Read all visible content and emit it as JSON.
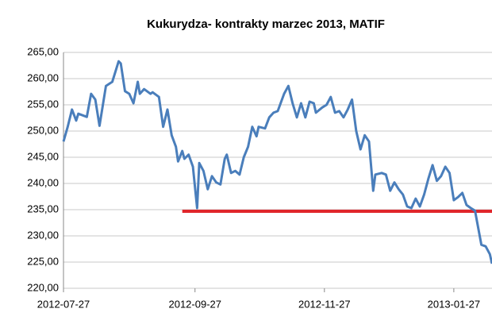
{
  "chart_data": {
    "type": "line",
    "title": "Kukurydza- kontrakty marzec 2013, MATIF",
    "x": [
      "2012-07-27",
      "2012-07-29",
      "2012-07-31",
      "2012-08-02",
      "2012-08-03",
      "2012-08-05",
      "2012-08-07",
      "2012-08-09",
      "2012-08-11",
      "2012-08-13",
      "2012-08-16",
      "2012-08-19",
      "2012-08-22",
      "2012-08-23",
      "2012-08-25",
      "2012-08-27",
      "2012-08-29",
      "2012-08-31",
      "2012-09-01",
      "2012-09-03",
      "2012-09-06",
      "2012-09-07",
      "2012-09-10",
      "2012-09-12",
      "2012-09-14",
      "2012-09-16",
      "2012-09-18",
      "2012-09-19",
      "2012-09-21",
      "2012-09-22",
      "2012-09-24",
      "2012-09-26",
      "2012-09-28",
      "2012-09-29",
      "2012-10-01",
      "2012-10-03",
      "2012-10-05",
      "2012-10-07",
      "2012-10-09",
      "2012-10-11",
      "2012-10-12",
      "2012-10-14",
      "2012-10-16",
      "2012-10-18",
      "2012-10-20",
      "2012-10-22",
      "2012-10-24",
      "2012-10-26",
      "2012-10-27",
      "2012-10-30",
      "2012-11-01",
      "2012-11-03",
      "2012-11-05",
      "2012-11-08",
      "2012-11-10",
      "2012-11-12",
      "2012-11-14",
      "2012-11-16",
      "2012-11-18",
      "2012-11-20",
      "2012-11-22",
      "2012-11-23",
      "2012-11-26",
      "2012-11-28",
      "2012-11-30",
      "2012-12-02",
      "2012-12-04",
      "2012-12-06",
      "2012-12-08",
      "2012-12-10",
      "2012-12-12",
      "2012-12-14",
      "2012-12-16",
      "2012-12-18",
      "2012-12-20",
      "2012-12-21",
      "2012-12-24",
      "2012-12-26",
      "2012-12-28",
      "2012-12-30",
      "2013-01-01",
      "2013-01-03",
      "2013-01-05",
      "2013-01-07",
      "2013-01-09",
      "2013-01-11",
      "2013-01-13",
      "2013-01-15",
      "2013-01-17",
      "2013-01-19",
      "2013-01-21",
      "2013-01-23",
      "2013-01-25",
      "2013-01-27",
      "2013-01-29",
      "2013-01-31",
      "2013-02-02",
      "2013-02-04",
      "2013-02-06",
      "2013-02-07",
      "2013-02-09",
      "2013-02-11",
      "2013-02-13",
      "2013-02-14"
    ],
    "series": [
      {
        "name": "MATIF",
        "color": "#4a7ebb",
        "values": [
          248.0,
          250.8,
          254.1,
          252.0,
          253.3,
          253.0,
          252.7,
          257.1,
          256.0,
          251.0,
          258.6,
          259.4,
          263.3,
          262.9,
          257.6,
          257.1,
          255.3,
          259.4,
          257.1,
          258.0,
          257.1,
          257.4,
          256.5,
          250.8,
          254.1,
          249.2,
          247.0,
          244.2,
          246.2,
          244.7,
          245.5,
          243.2,
          235.3,
          243.9,
          242.4,
          238.9,
          241.4,
          240.2,
          239.8,
          244.7,
          245.5,
          242.0,
          242.4,
          241.7,
          245.0,
          247.0,
          250.8,
          249.0,
          250.8,
          250.5,
          252.6,
          253.5,
          253.8,
          257.1,
          258.6,
          255.3,
          252.6,
          255.3,
          252.6,
          255.6,
          255.3,
          253.5,
          254.5,
          255.0,
          256.5,
          253.5,
          253.8,
          252.6,
          254.1,
          256.0,
          250.0,
          246.5,
          249.2,
          248.0,
          238.6,
          241.7,
          242.0,
          241.7,
          238.6,
          240.2,
          238.9,
          237.9,
          235.6,
          235.3,
          237.1,
          235.6,
          237.9,
          240.9,
          243.5,
          240.5,
          241.4,
          243.2,
          242.0,
          236.8,
          237.4,
          238.2,
          235.9,
          235.3,
          234.8,
          232.6,
          228.3,
          228.0,
          226.5,
          224.7
        ]
      }
    ],
    "xlim": [
      "2012-07-27",
      "2013-02-14"
    ],
    "xticks": [
      "2012-07-27",
      "2012-09-27",
      "2012-11-27",
      "2013-01-27"
    ],
    "ylim": [
      220,
      265
    ],
    "yticks": [
      {
        "value": 220,
        "label": "220,00"
      },
      {
        "value": 225,
        "label": "225,00"
      },
      {
        "value": 230,
        "label": "230,00"
      },
      {
        "value": 235,
        "label": "235,00"
      },
      {
        "value": 240,
        "label": "240,00"
      },
      {
        "value": 245,
        "label": "245,00"
      },
      {
        "value": 250,
        "label": "250,00"
      },
      {
        "value": 255,
        "label": "255,00"
      },
      {
        "value": 260,
        "label": "260,00"
      },
      {
        "value": 265,
        "label": "265,00"
      }
    ],
    "grid": true,
    "reference_line": {
      "value": 234.7,
      "x": [
        "2012-09-21",
        "2013-02-14"
      ],
      "color": "#e0262b"
    }
  }
}
